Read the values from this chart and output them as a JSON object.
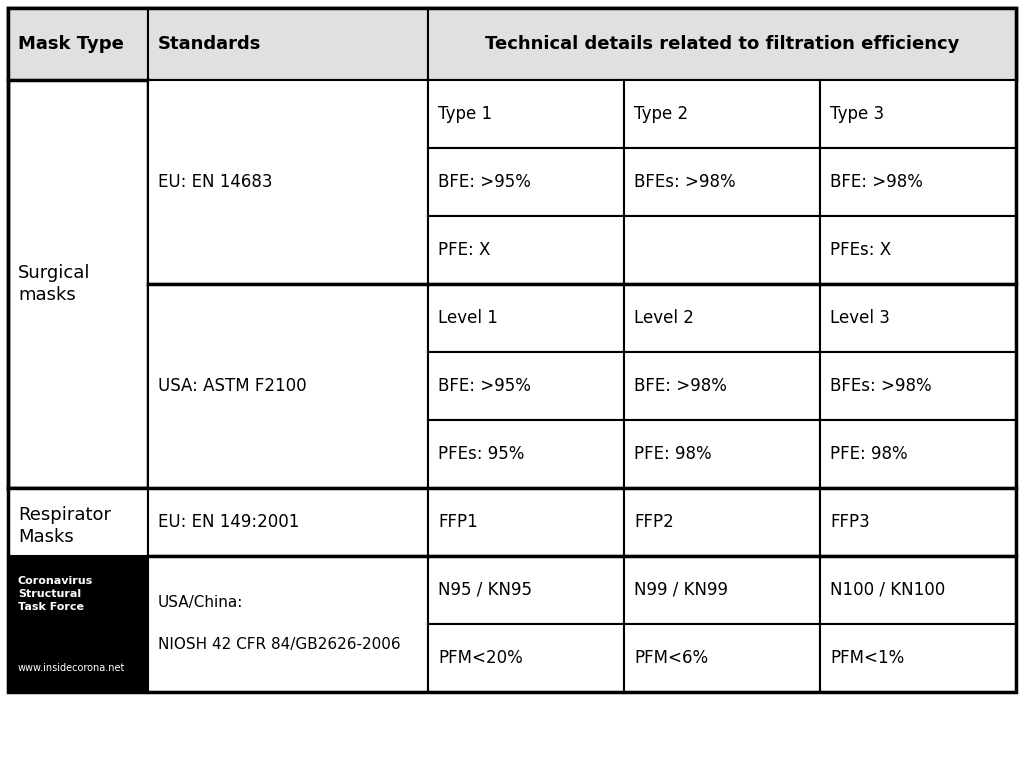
{
  "bg_color": "#ffffff",
  "border_color": "#000000",
  "header_bg": "#e0e0e0",
  "col0_header": "Mask Type",
  "col1_header": "Standards",
  "col23_header": "Technical details related to filtration efficiency",
  "logo_line1": "Coronavirus",
  "logo_line2": "Structural",
  "logo_line3": "Task Force",
  "logo_url": "www.insidecorona.net",
  "sections": [
    {
      "mask_type": "Surgical\nmasks",
      "standards": [
        {
          "name": "EU: EN 14683",
          "rows": [
            [
              "Type 1",
              "Type 2",
              "Type 3"
            ],
            [
              "BFE: >95%",
              "BFEs: >98%",
              "BFE: >98%"
            ],
            [
              "PFE: X",
              "",
              "PFEs: X"
            ]
          ]
        },
        {
          "name": "USA: ASTM F2100",
          "rows": [
            [
              "Level 1",
              "Level 2",
              "Level 3"
            ],
            [
              "BFE: >95%",
              "BFE: >98%",
              "BFEs: >98%"
            ],
            [
              "PFEs: 95%",
              "PFE: 98%",
              "PFE: 98%"
            ]
          ]
        }
      ]
    },
    {
      "mask_type": "Respirator\nMasks",
      "standards": [
        {
          "name": "EU: EN 149:2001",
          "rows": [
            [
              "FFP1",
              "FFP2",
              "FFP3"
            ]
          ]
        },
        {
          "name": "USA/China:\n\nNIOSH 42 CFR 84/GB2626-2006",
          "rows": [
            [
              "N95 / KN95",
              "N99 / KN99",
              "N100 / KN100"
            ],
            [
              "PFM<20%",
              "PFM<6%",
              "PFM<1%"
            ]
          ]
        }
      ]
    }
  ]
}
